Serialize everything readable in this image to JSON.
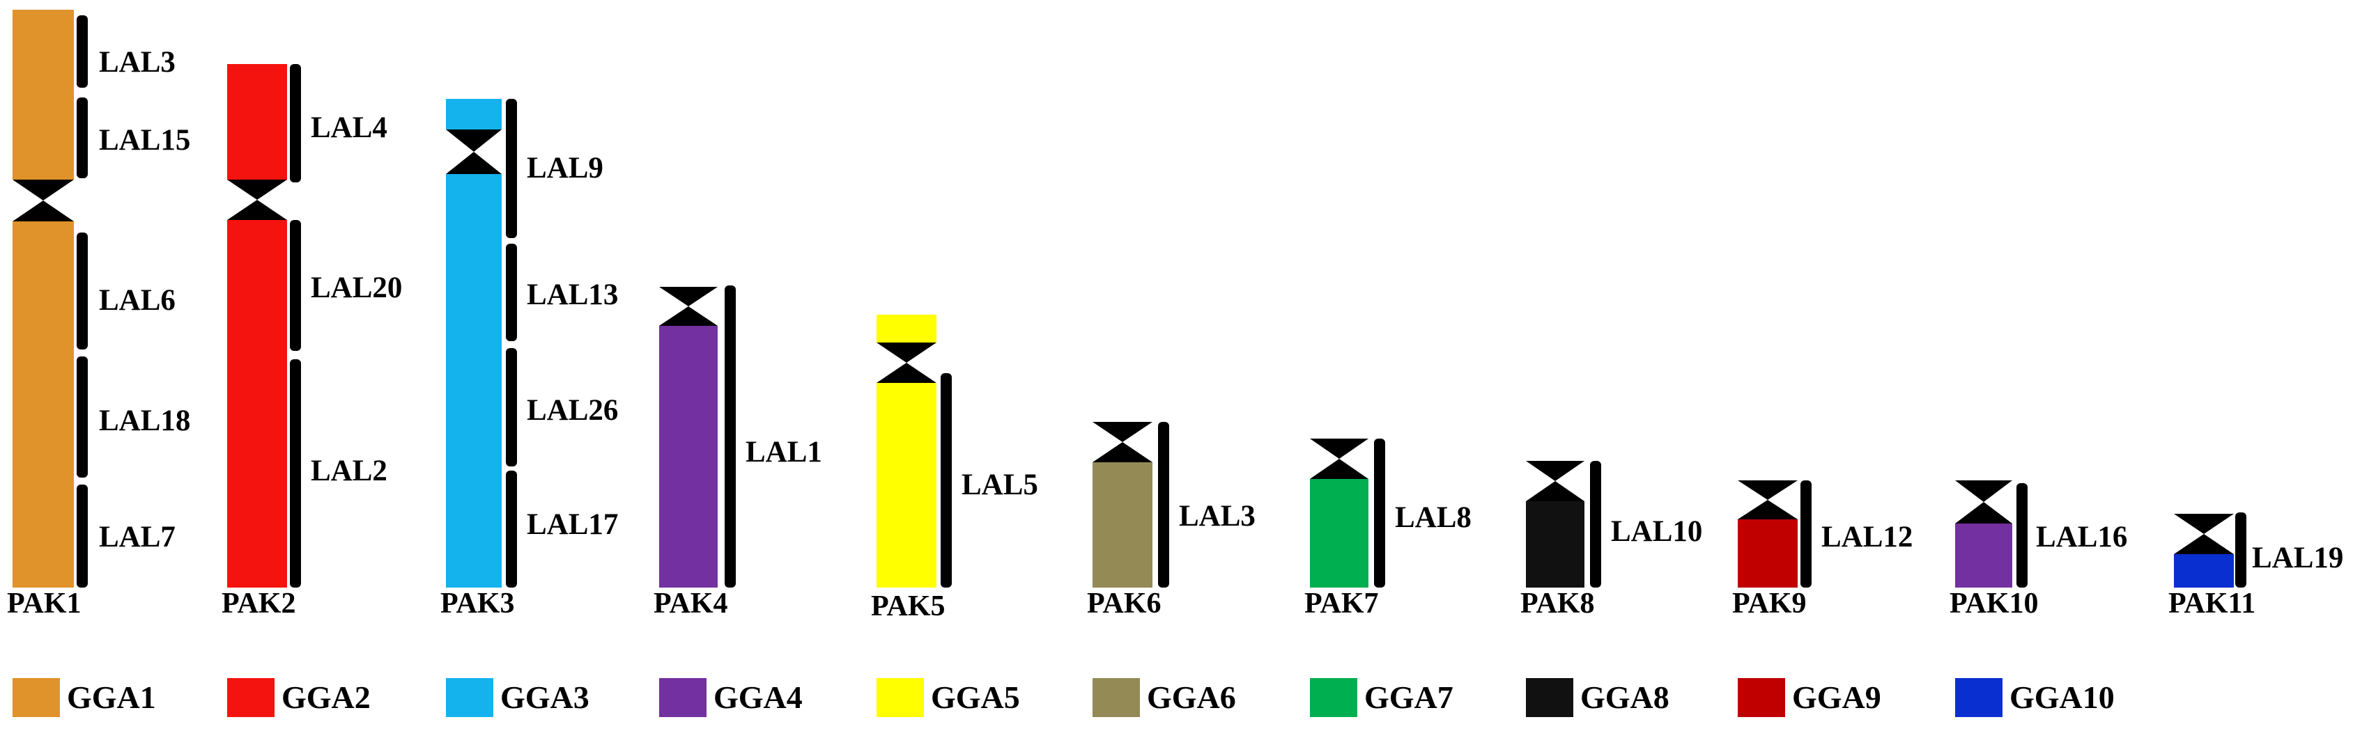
{
  "colors": {
    "GGA1": "#E0922B",
    "GGA2": "#F5130F",
    "GGA3": "#14B3EE",
    "GGA4": "#7330A0",
    "GGA5": "#FFFF00",
    "GGA6": "#948A55",
    "GGA7": "#00AF50",
    "GGA8": "#111111",
    "GGA9": "#C00000",
    "GGA10": "#0A2FD0",
    "centromere": "#000000",
    "bracket": "#000000"
  },
  "chromosomes": [
    {
      "name": "PAK1",
      "blocks": [
        "GGA1",
        "GGA1"
      ],
      "segments": [
        "LAL3",
        "LAL15",
        "LAL6",
        "LAL18",
        "LAL7"
      ]
    },
    {
      "name": "PAK2",
      "blocks": [
        "GGA2",
        "GGA2"
      ],
      "segments": [
        "LAL4",
        "LAL20",
        "LAL2"
      ]
    },
    {
      "name": "PAK3",
      "blocks": [
        "GGA3",
        "GGA3"
      ],
      "segments": [
        "LAL9",
        "LAL13",
        "LAL26",
        "LAL17"
      ]
    },
    {
      "name": "PAK4",
      "blocks": [
        "GGA4"
      ],
      "segments": [
        "LAL1"
      ]
    },
    {
      "name": "PAK5",
      "blocks": [
        "GGA5",
        "GGA5"
      ],
      "segments": [
        "LAL5"
      ]
    },
    {
      "name": "PAK6",
      "blocks": [
        "GGA6"
      ],
      "segments": [
        "LAL3"
      ]
    },
    {
      "name": "PAK7",
      "blocks": [
        "GGA7"
      ],
      "segments": [
        "LAL8"
      ]
    },
    {
      "name": "PAK8",
      "blocks": [
        "GGA8"
      ],
      "segments": [
        "LAL10"
      ]
    },
    {
      "name": "PAK9",
      "blocks": [
        "GGA9"
      ],
      "segments": [
        "LAL12"
      ]
    },
    {
      "name": "PAK10",
      "blocks": [
        "GGA4"
      ],
      "segments": [
        "LAL16"
      ]
    },
    {
      "name": "PAK11",
      "blocks": [
        "GGA10"
      ],
      "segments": [
        "LAL19"
      ]
    }
  ],
  "legend": [
    {
      "label": "GGA1",
      "color_key": "GGA1"
    },
    {
      "label": "GGA2",
      "color_key": "GGA2"
    },
    {
      "label": "GGA3",
      "color_key": "GGA3"
    },
    {
      "label": "GGA4",
      "color_key": "GGA4"
    },
    {
      "label": "GGA5",
      "color_key": "GGA5"
    },
    {
      "label": "GGA6",
      "color_key": "GGA6"
    },
    {
      "label": "GGA7",
      "color_key": "GGA7"
    },
    {
      "label": "GGA8",
      "color_key": "GGA8"
    },
    {
      "label": "GGA9",
      "color_key": "GGA9"
    },
    {
      "label": "GGA10",
      "color_key": "GGA10"
    }
  ]
}
